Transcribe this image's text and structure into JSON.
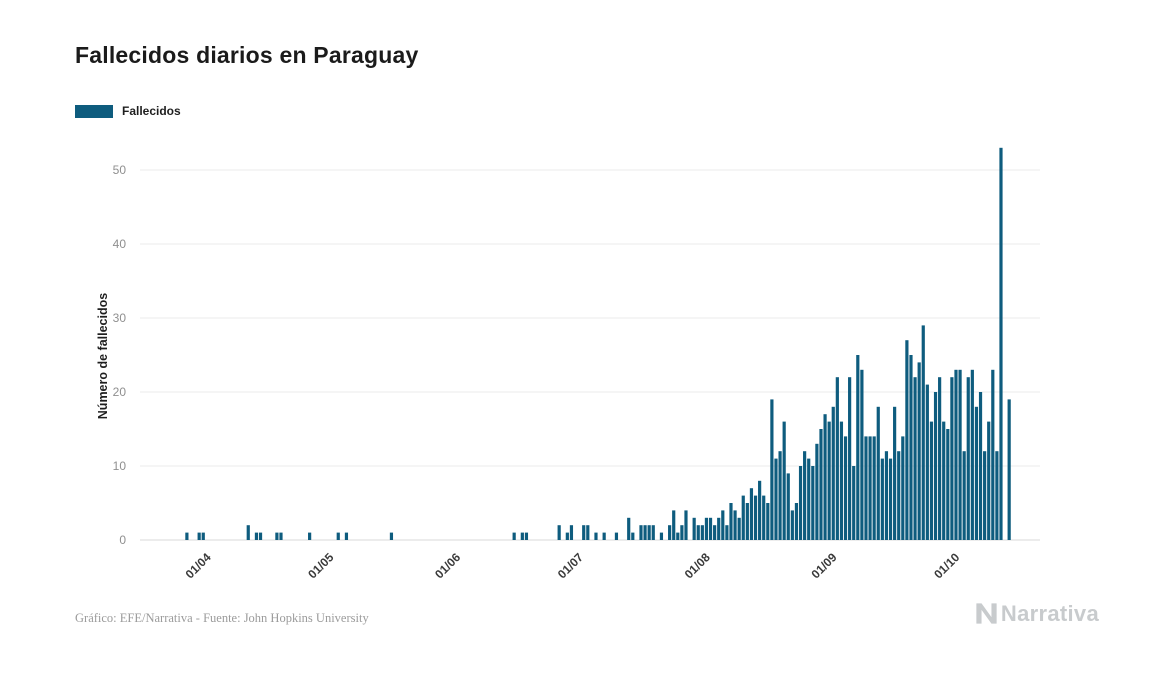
{
  "header": {
    "title": "Fallecidos diarios en Paraguay"
  },
  "legend": {
    "label": "Fallecidos",
    "color": "#0e5c7e"
  },
  "chart_data": {
    "type": "bar",
    "title": "Fallecidos diarios en Paraguay",
    "xlabel": "",
    "ylabel": "Número de fallecidos",
    "ylim": [
      0,
      50
    ],
    "y_ticks": [
      0,
      10,
      20,
      30,
      40,
      50
    ],
    "grid": "horizontal",
    "legend_position": "top-left",
    "series_name": "Fallecidos",
    "bar_color": "#0e5c7e",
    "x_ticks": [
      {
        "label": "01/04",
        "index": 17
      },
      {
        "label": "01/05",
        "index": 47
      },
      {
        "label": "01/06",
        "index": 78
      },
      {
        "label": "01/07",
        "index": 108
      },
      {
        "label": "01/08",
        "index": 139
      },
      {
        "label": "01/09",
        "index": 170
      },
      {
        "label": "01/10",
        "index": 200
      }
    ],
    "values": [
      0,
      0,
      0,
      0,
      0,
      0,
      0,
      0,
      0,
      0,
      0,
      1,
      0,
      0,
      1,
      1,
      0,
      0,
      0,
      0,
      0,
      0,
      0,
      0,
      0,
      0,
      2,
      0,
      1,
      1,
      0,
      0,
      0,
      1,
      1,
      0,
      0,
      0,
      0,
      0,
      0,
      1,
      0,
      0,
      0,
      0,
      0,
      0,
      1,
      0,
      1,
      0,
      0,
      0,
      0,
      0,
      0,
      0,
      0,
      0,
      0,
      1,
      0,
      0,
      0,
      0,
      0,
      0,
      0,
      0,
      0,
      0,
      0,
      0,
      0,
      0,
      0,
      0,
      0,
      0,
      0,
      0,
      0,
      0,
      0,
      0,
      0,
      0,
      0,
      0,
      0,
      1,
      0,
      1,
      1,
      0,
      0,
      0,
      0,
      0,
      0,
      0,
      2,
      0,
      1,
      2,
      0,
      0,
      2,
      2,
      0,
      1,
      0,
      1,
      0,
      0,
      1,
      0,
      0,
      3,
      1,
      0,
      2,
      2,
      2,
      2,
      0,
      1,
      0,
      2,
      4,
      1,
      2,
      4,
      0,
      3,
      2,
      2,
      3,
      3,
      2,
      3,
      4,
      2,
      5,
      4,
      3,
      6,
      5,
      7,
      6,
      8,
      6,
      5,
      19,
      11,
      12,
      16,
      9,
      4,
      5,
      10,
      12,
      11,
      10,
      13,
      15,
      17,
      16,
      18,
      22,
      16,
      14,
      22,
      10,
      25,
      23,
      14,
      14,
      14,
      18,
      11,
      12,
      11,
      18,
      12,
      14,
      27,
      25,
      22,
      24,
      29,
      21,
      16,
      20,
      22,
      16,
      15,
      22,
      23,
      23,
      12,
      22,
      23,
      18,
      20,
      12,
      16,
      23,
      12,
      53,
      0,
      19
    ]
  },
  "footer": {
    "attribution": "Gráfico: EFE/Narrativa - Fuente: John Hopkins University",
    "brand": "Narrativa"
  }
}
